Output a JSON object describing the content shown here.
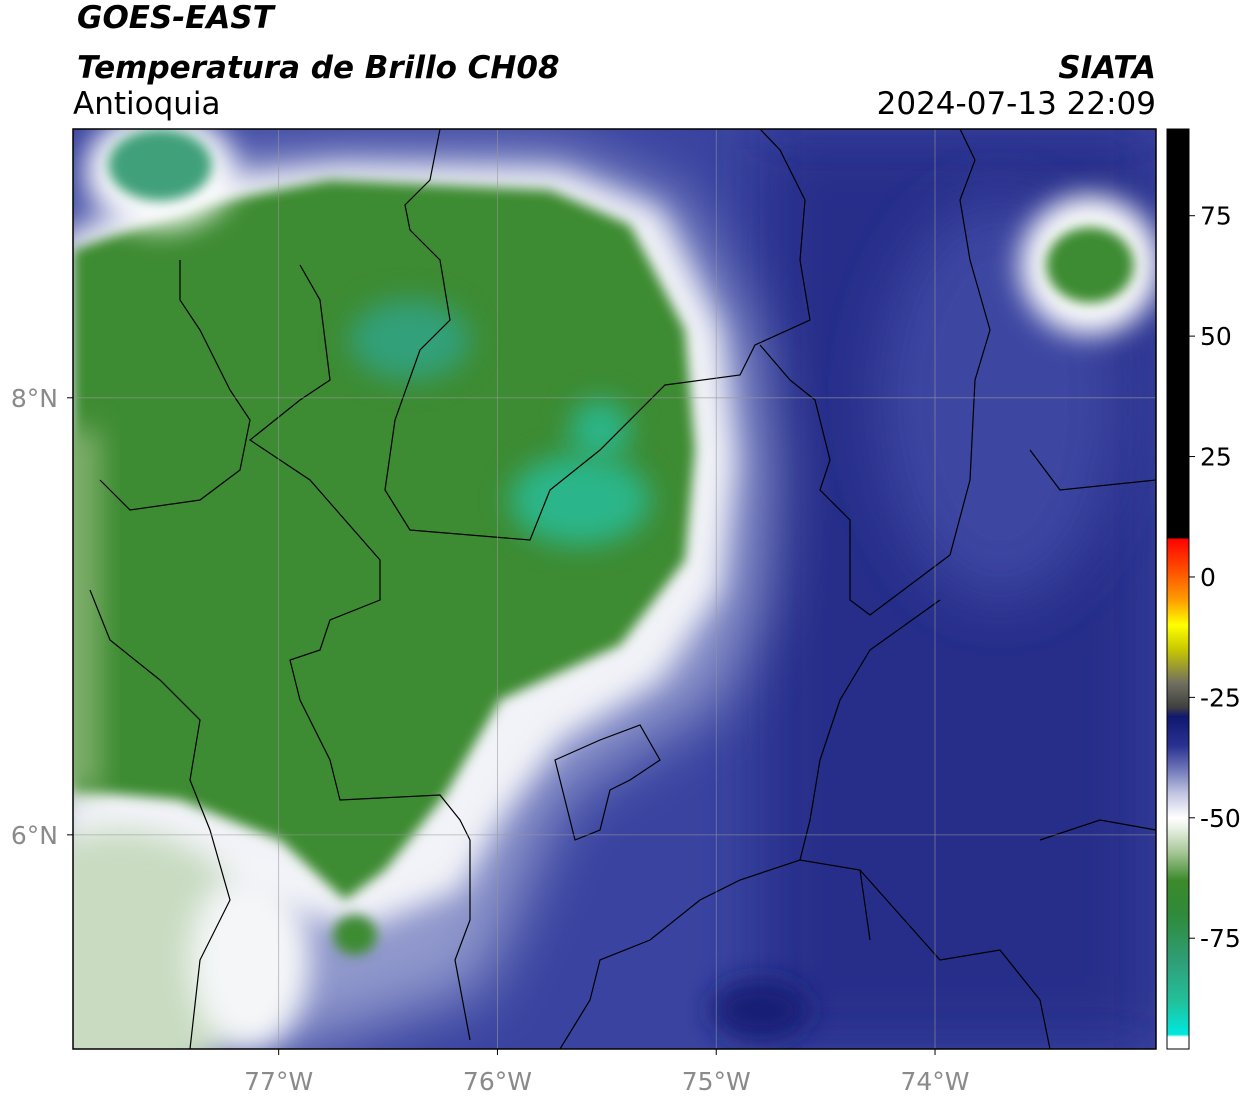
{
  "header": {
    "title": "GOES-EAST",
    "subtitle": "Temperatura de Brillo CH08",
    "region": "Antioquia",
    "source": "SIATA",
    "datetime": "2024-07-13 22:09"
  },
  "map": {
    "xlim": [
      -77.94,
      -72.99
    ],
    "ylim": [
      5.02,
      9.23
    ],
    "xticks": [
      {
        "value": -77,
        "label": "77°W"
      },
      {
        "value": -76,
        "label": "76°W"
      },
      {
        "value": -75,
        "label": "75°W"
      },
      {
        "value": -74,
        "label": "74°W"
      }
    ],
    "yticks": [
      {
        "value": 6,
        "label": "6°N"
      },
      {
        "value": 8,
        "label": "8°N"
      }
    ],
    "grid": true
  },
  "colorbar": {
    "lim": [
      -98,
      93
    ],
    "ticks": [
      -75,
      -50,
      -25,
      0,
      25,
      50,
      75
    ],
    "stops": [
      {
        "value": -98,
        "color": "#ffffff"
      },
      {
        "value": -95.5,
        "color": "#ffffff"
      },
      {
        "value": -95,
        "color": "#00e8de"
      },
      {
        "value": -88,
        "color": "#22c09a"
      },
      {
        "value": -80,
        "color": "#2f9f78"
      },
      {
        "value": -70,
        "color": "#2f8a3a"
      },
      {
        "value": -63,
        "color": "#3c8a2c"
      },
      {
        "value": -57,
        "color": "#a9c89a"
      },
      {
        "value": -52,
        "color": "#eaf2e8"
      },
      {
        "value": -50,
        "color": "#ffffff"
      },
      {
        "value": -45,
        "color": "#c2c6e2"
      },
      {
        "value": -40,
        "color": "#7078b8"
      },
      {
        "value": -35,
        "color": "#2a3090"
      },
      {
        "value": -29,
        "color": "#101870"
      },
      {
        "value": -27,
        "color": "#404040"
      },
      {
        "value": -22,
        "color": "#707060"
      },
      {
        "value": -15,
        "color": "#c8c800"
      },
      {
        "value": -10,
        "color": "#ffff00"
      },
      {
        "value": -5,
        "color": "#ffa000"
      },
      {
        "value": 0,
        "color": "#ff6000"
      },
      {
        "value": 8,
        "color": "#ff0000"
      },
      {
        "value": 8.01,
        "color": "#000000"
      },
      {
        "value": 93,
        "color": "#000000"
      }
    ]
  }
}
